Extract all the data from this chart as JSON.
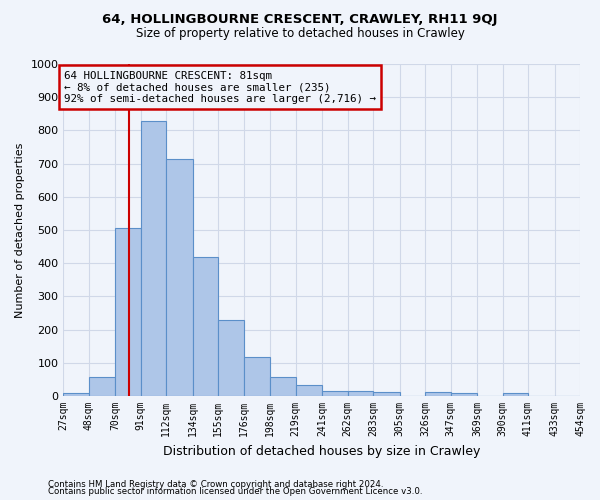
{
  "title1": "64, HOLLINGBOURNE CRESCENT, CRAWLEY, RH11 9QJ",
  "title2": "Size of property relative to detached houses in Crawley",
  "xlabel": "Distribution of detached houses by size in Crawley",
  "ylabel": "Number of detached properties",
  "bar_edges": [
    27,
    48,
    70,
    91,
    112,
    134,
    155,
    176,
    198,
    219,
    241,
    262,
    283,
    305,
    326,
    347,
    369,
    390,
    411,
    433,
    454
  ],
  "bar_heights": [
    10,
    57,
    505,
    828,
    713,
    418,
    230,
    117,
    57,
    32,
    15,
    15,
    13,
    0,
    13,
    10,
    0,
    10,
    0,
    0
  ],
  "bar_color": "#aec6e8",
  "bar_edgecolor": "#5b8fc9",
  "property_size": 81,
  "vline_color": "#cc0000",
  "annotation_line1": "64 HOLLINGBOURNE CRESCENT: 81sqm",
  "annotation_line2": "← 8% of detached houses are smaller (235)",
  "annotation_line3": "92% of semi-detached houses are larger (2,716) →",
  "annotation_box_edgecolor": "#cc0000",
  "ylim": [
    0,
    1000
  ],
  "yticks": [
    0,
    100,
    200,
    300,
    400,
    500,
    600,
    700,
    800,
    900,
    1000
  ],
  "grid_color": "#d0d8e8",
  "footnote1": "Contains HM Land Registry data © Crown copyright and database right 2024.",
  "footnote2": "Contains public sector information licensed under the Open Government Licence v3.0.",
  "bg_color": "#f0f4fb",
  "white": "#ffffff"
}
